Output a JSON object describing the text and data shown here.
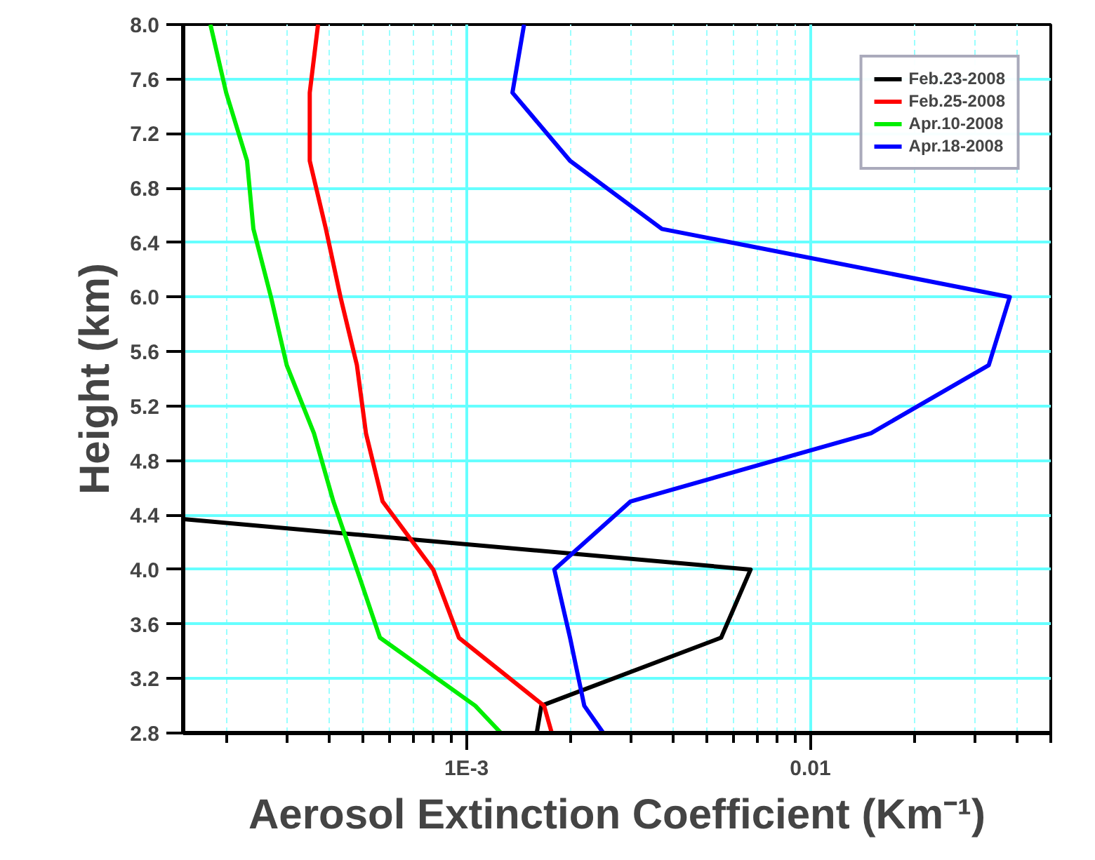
{
  "chart_data": {
    "type": "line",
    "xlabel": "Aerosol Extinction Coefficient (Km⁻¹)",
    "ylabel": "Height (km)",
    "log": "x",
    "xlim": [
      0.00015,
      0.05
    ],
    "ylim": [
      2.8,
      8.0
    ],
    "xticks": [
      {
        "value": 0.0002,
        "label": null
      },
      {
        "value": 0.0003,
        "label": null
      },
      {
        "value": 0.0004,
        "label": null
      },
      {
        "value": 0.0005,
        "label": null
      },
      {
        "value": 0.0006,
        "label": null
      },
      {
        "value": 0.0007,
        "label": null
      },
      {
        "value": 0.0008,
        "label": null
      },
      {
        "value": 0.0009,
        "label": null
      },
      {
        "value": 0.001,
        "label": "1E-3"
      },
      {
        "value": 0.002,
        "label": null
      },
      {
        "value": 0.003,
        "label": null
      },
      {
        "value": 0.004,
        "label": null
      },
      {
        "value": 0.005,
        "label": null
      },
      {
        "value": 0.006,
        "label": null
      },
      {
        "value": 0.007,
        "label": null
      },
      {
        "value": 0.008,
        "label": null
      },
      {
        "value": 0.009,
        "label": null
      },
      0.01,
      {
        "value": 0.02,
        "label": null
      },
      {
        "value": 0.03,
        "label": null
      },
      {
        "value": 0.04,
        "label": null
      },
      {
        "value": 0.05,
        "label": null
      }
    ],
    "yticks": [
      {
        "value": 2.8,
        "label": "2.8"
      },
      {
        "value": 3.2,
        "label": "3.2"
      },
      {
        "value": 3.6,
        "label": "3.6"
      },
      {
        "value": 4.0,
        "label": "4.0"
      },
      {
        "value": 4.4,
        "label": "4.4"
      },
      {
        "value": 4.8,
        "label": "4.8"
      },
      {
        "value": 5.2,
        "label": "5.2"
      },
      {
        "value": 5.6,
        "label": "5.6"
      },
      {
        "value": 6.0,
        "label": "6.0"
      },
      {
        "value": 6.4,
        "label": "6.4"
      },
      {
        "value": 6.8,
        "label": "6.8"
      },
      {
        "value": 7.2,
        "label": "7.2"
      },
      {
        "value": 7.6,
        "label": "7.6"
      },
      {
        "value": 8.0,
        "label": "8.0"
      }
    ],
    "grid": true,
    "legend": "top right",
    "marker": "none",
    "line_style": "solid",
    "series": [
      {
        "name": "Feb.23-2008",
        "color": "#000000",
        "x": [
          0.0016,
          0.00165,
          0.0055,
          0.0067,
          0.00015
        ],
        "values": [
          2.8,
          3.0,
          3.5,
          4.0,
          4.37
        ]
      },
      {
        "name": "Feb.25-2008",
        "color": "#ff0000",
        "x": [
          0.00177,
          0.00168,
          0.00095,
          0.0008,
          0.00057,
          0.00051,
          0.00048,
          0.00043,
          0.00039,
          0.00035,
          0.00035,
          0.00037
        ],
        "values": [
          2.8,
          3.0,
          3.5,
          4.0,
          4.5,
          5.0,
          5.5,
          6.0,
          6.5,
          7.0,
          7.5,
          8.0
        ]
      },
      {
        "name": "Apr.10-2008",
        "color": "#00ee00",
        "x": [
          0.00126,
          0.00106,
          0.00056,
          0.00048,
          0.00041,
          0.00036,
          0.0003,
          0.00027,
          0.00024,
          0.00023,
          0.0002,
          0.00018
        ],
        "values": [
          2.8,
          3.0,
          3.5,
          4.0,
          4.5,
          5.0,
          5.5,
          6.0,
          6.5,
          7.0,
          7.5,
          8.0
        ]
      },
      {
        "name": "Apr.18-2008",
        "color": "#0000ff",
        "x": [
          0.0025,
          0.0022,
          0.002,
          0.0018,
          0.003,
          0.015,
          0.033,
          0.038,
          0.0037,
          0.002,
          0.00136,
          0.00147
        ],
        "values": [
          2.8,
          3.0,
          3.5,
          4.0,
          4.5,
          5.0,
          5.5,
          6.0,
          6.5,
          7.0,
          7.5,
          8.0
        ]
      }
    ]
  }
}
